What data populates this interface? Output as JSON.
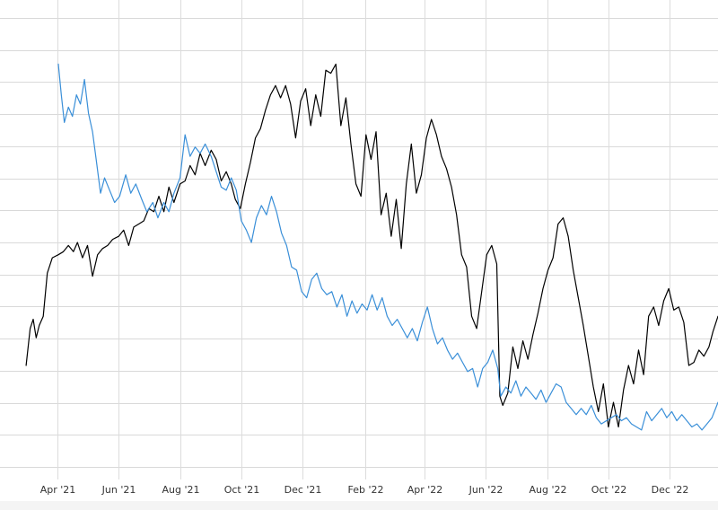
{
  "chart_data": {
    "type": "line",
    "title": "",
    "xlabel": "",
    "ylabel": "",
    "x_ticks": [
      "Apr '21",
      "Jun '21",
      "Aug '21",
      "Oct '21",
      "Dec '21",
      "Feb '22",
      "Apr '22",
      "Jun '22",
      "Aug '22",
      "Oct '22",
      "Dec '22"
    ],
    "tick_dates": [
      "2021-04-01",
      "2021-06-01",
      "2021-08-01",
      "2021-10-01",
      "2021-12-01",
      "2022-02-01",
      "2022-04-01",
      "2022-06-01",
      "2022-08-01",
      "2022-10-01",
      "2022-12-01"
    ],
    "xlim": [
      "2021-02-03",
      "2023-01-18"
    ],
    "ylim": [
      0,
      14.6
    ],
    "y_grid_count": 14,
    "grid": true,
    "y_tick_labels_visible": false,
    "legend": "none",
    "series": [
      {
        "color": "#000000",
        "points": [
          [
            "2021-03-01",
            3.3
          ],
          [
            "2021-03-05",
            4.5
          ],
          [
            "2021-03-08",
            4.8
          ],
          [
            "2021-03-11",
            4.2
          ],
          [
            "2021-03-14",
            4.6
          ],
          [
            "2021-03-18",
            4.9
          ],
          [
            "2021-03-22",
            6.3
          ],
          [
            "2021-03-27",
            6.8
          ],
          [
            "2021-04-02",
            6.9
          ],
          [
            "2021-04-07",
            7.0
          ],
          [
            "2021-04-12",
            7.2
          ],
          [
            "2021-04-17",
            7.0
          ],
          [
            "2021-04-21",
            7.3
          ],
          [
            "2021-04-26",
            6.8
          ],
          [
            "2021-05-01",
            7.2
          ],
          [
            "2021-05-06",
            6.2
          ],
          [
            "2021-05-11",
            6.9
          ],
          [
            "2021-05-16",
            7.1
          ],
          [
            "2021-05-21",
            7.2
          ],
          [
            "2021-05-26",
            7.4
          ],
          [
            "2021-06-01",
            7.5
          ],
          [
            "2021-06-06",
            7.7
          ],
          [
            "2021-06-11",
            7.2
          ],
          [
            "2021-06-16",
            7.8
          ],
          [
            "2021-06-21",
            7.9
          ],
          [
            "2021-06-26",
            8.0
          ],
          [
            "2021-07-01",
            8.4
          ],
          [
            "2021-07-06",
            8.3
          ],
          [
            "2021-07-11",
            8.8
          ],
          [
            "2021-07-16",
            8.3
          ],
          [
            "2021-07-21",
            9.1
          ],
          [
            "2021-07-26",
            8.6
          ],
          [
            "2021-08-01",
            9.2
          ],
          [
            "2021-08-06",
            9.3
          ],
          [
            "2021-08-11",
            9.8
          ],
          [
            "2021-08-16",
            9.5
          ],
          [
            "2021-08-21",
            10.2
          ],
          [
            "2021-08-26",
            9.8
          ],
          [
            "2021-09-01",
            10.3
          ],
          [
            "2021-09-06",
            10.0
          ],
          [
            "2021-09-11",
            9.3
          ],
          [
            "2021-09-16",
            9.6
          ],
          [
            "2021-09-21",
            9.2
          ],
          [
            "2021-09-25",
            8.7
          ],
          [
            "2021-09-30",
            8.4
          ],
          [
            "2021-10-05",
            9.2
          ],
          [
            "2021-10-10",
            9.9
          ],
          [
            "2021-10-15",
            10.7
          ],
          [
            "2021-10-20",
            11.0
          ],
          [
            "2021-10-25",
            11.6
          ],
          [
            "2021-10-30",
            12.1
          ],
          [
            "2021-11-04",
            12.4
          ],
          [
            "2021-11-09",
            12.0
          ],
          [
            "2021-11-14",
            12.4
          ],
          [
            "2021-11-19",
            11.8
          ],
          [
            "2021-11-24",
            10.7
          ],
          [
            "2021-11-29",
            11.9
          ],
          [
            "2021-12-04",
            12.3
          ],
          [
            "2021-12-09",
            11.1
          ],
          [
            "2021-12-14",
            12.1
          ],
          [
            "2021-12-19",
            11.4
          ],
          [
            "2021-12-24",
            12.9
          ],
          [
            "2021-12-29",
            12.8
          ],
          [
            "2022-01-03",
            13.1
          ],
          [
            "2022-01-08",
            11.1
          ],
          [
            "2022-01-13",
            12.0
          ],
          [
            "2022-01-18",
            10.5
          ],
          [
            "2022-01-23",
            9.2
          ],
          [
            "2022-01-28",
            8.8
          ],
          [
            "2022-02-02",
            10.8
          ],
          [
            "2022-02-07",
            10.0
          ],
          [
            "2022-02-12",
            10.9
          ],
          [
            "2022-02-17",
            8.2
          ],
          [
            "2022-02-22",
            8.9
          ],
          [
            "2022-02-27",
            7.5
          ],
          [
            "2022-03-04",
            8.7
          ],
          [
            "2022-03-09",
            7.1
          ],
          [
            "2022-03-14",
            9.2
          ],
          [
            "2022-03-19",
            10.5
          ],
          [
            "2022-03-24",
            8.9
          ],
          [
            "2022-03-29",
            9.5
          ],
          [
            "2022-04-03",
            10.7
          ],
          [
            "2022-04-08",
            11.3
          ],
          [
            "2022-04-13",
            10.8
          ],
          [
            "2022-04-18",
            10.1
          ],
          [
            "2022-04-23",
            9.7
          ],
          [
            "2022-04-28",
            9.1
          ],
          [
            "2022-05-03",
            8.2
          ],
          [
            "2022-05-08",
            6.9
          ],
          [
            "2022-05-13",
            6.5
          ],
          [
            "2022-05-18",
            4.9
          ],
          [
            "2022-05-23",
            4.5
          ],
          [
            "2022-05-28",
            5.7
          ],
          [
            "2022-06-02",
            6.9
          ],
          [
            "2022-06-07",
            7.2
          ],
          [
            "2022-06-12",
            6.6
          ],
          [
            "2022-06-15",
            2.3
          ],
          [
            "2022-06-18",
            2.0
          ],
          [
            "2022-06-23",
            2.4
          ],
          [
            "2022-06-28",
            3.9
          ],
          [
            "2022-07-03",
            3.2
          ],
          [
            "2022-07-08",
            4.1
          ],
          [
            "2022-07-13",
            3.5
          ],
          [
            "2022-07-18",
            4.3
          ],
          [
            "2022-07-23",
            5.0
          ],
          [
            "2022-07-28",
            5.8
          ],
          [
            "2022-08-02",
            6.4
          ],
          [
            "2022-08-07",
            6.8
          ],
          [
            "2022-08-12",
            7.9
          ],
          [
            "2022-08-17",
            8.1
          ],
          [
            "2022-08-22",
            7.5
          ],
          [
            "2022-08-27",
            6.4
          ],
          [
            "2022-09-01",
            5.5
          ],
          [
            "2022-09-06",
            4.6
          ],
          [
            "2022-09-11",
            3.6
          ],
          [
            "2022-09-16",
            2.6
          ],
          [
            "2022-09-21",
            1.8
          ],
          [
            "2022-09-26",
            2.7
          ],
          [
            "2022-10-01",
            1.3
          ],
          [
            "2022-10-06",
            2.1
          ],
          [
            "2022-10-11",
            1.3
          ],
          [
            "2022-10-16",
            2.5
          ],
          [
            "2022-10-21",
            3.3
          ],
          [
            "2022-10-26",
            2.7
          ],
          [
            "2022-10-31",
            3.8
          ],
          [
            "2022-11-05",
            3.0
          ],
          [
            "2022-11-10",
            4.9
          ],
          [
            "2022-11-15",
            5.2
          ],
          [
            "2022-11-20",
            4.6
          ],
          [
            "2022-11-25",
            5.4
          ],
          [
            "2022-11-30",
            5.8
          ],
          [
            "2022-12-05",
            5.1
          ],
          [
            "2022-12-10",
            5.2
          ],
          [
            "2022-12-15",
            4.7
          ],
          [
            "2022-12-20",
            3.3
          ],
          [
            "2022-12-25",
            3.4
          ],
          [
            "2022-12-30",
            3.8
          ],
          [
            "2023-01-04",
            3.6
          ],
          [
            "2023-01-09",
            3.9
          ],
          [
            "2023-01-13",
            4.4
          ],
          [
            "2023-01-18",
            4.9
          ]
        ]
      },
      {
        "color": "#3a8fd8",
        "points": [
          [
            "2021-04-02",
            13.1
          ],
          [
            "2021-04-05",
            12.1
          ],
          [
            "2021-04-08",
            11.2
          ],
          [
            "2021-04-12",
            11.7
          ],
          [
            "2021-04-16",
            11.4
          ],
          [
            "2021-04-20",
            12.1
          ],
          [
            "2021-04-24",
            11.8
          ],
          [
            "2021-04-28",
            12.6
          ],
          [
            "2021-05-02",
            11.5
          ],
          [
            "2021-05-06",
            10.9
          ],
          [
            "2021-05-10",
            9.9
          ],
          [
            "2021-05-14",
            8.9
          ],
          [
            "2021-05-18",
            9.4
          ],
          [
            "2021-05-23",
            9.0
          ],
          [
            "2021-05-28",
            8.6
          ],
          [
            "2021-06-02",
            8.8
          ],
          [
            "2021-06-08",
            9.5
          ],
          [
            "2021-06-13",
            8.9
          ],
          [
            "2021-06-18",
            9.2
          ],
          [
            "2021-06-24",
            8.7
          ],
          [
            "2021-06-29",
            8.3
          ],
          [
            "2021-07-05",
            8.6
          ],
          [
            "2021-07-10",
            8.1
          ],
          [
            "2021-07-16",
            8.6
          ],
          [
            "2021-07-21",
            8.3
          ],
          [
            "2021-07-26",
            8.9
          ],
          [
            "2021-08-01",
            9.4
          ],
          [
            "2021-08-06",
            10.8
          ],
          [
            "2021-08-11",
            10.1
          ],
          [
            "2021-08-16",
            10.4
          ],
          [
            "2021-08-21",
            10.2
          ],
          [
            "2021-08-26",
            10.5
          ],
          [
            "2021-09-01",
            10.1
          ],
          [
            "2021-09-06",
            9.6
          ],
          [
            "2021-09-11",
            9.1
          ],
          [
            "2021-09-16",
            9.0
          ],
          [
            "2021-09-21",
            9.4
          ],
          [
            "2021-09-26",
            9.0
          ],
          [
            "2021-10-01",
            8.0
          ],
          [
            "2021-10-06",
            7.7
          ],
          [
            "2021-10-11",
            7.3
          ],
          [
            "2021-10-16",
            8.1
          ],
          [
            "2021-10-21",
            8.5
          ],
          [
            "2021-10-26",
            8.2
          ],
          [
            "2021-10-31",
            8.8
          ],
          [
            "2021-11-05",
            8.3
          ],
          [
            "2021-11-10",
            7.6
          ],
          [
            "2021-11-15",
            7.2
          ],
          [
            "2021-11-20",
            6.5
          ],
          [
            "2021-11-25",
            6.4
          ],
          [
            "2021-11-30",
            5.7
          ],
          [
            "2021-12-05",
            5.5
          ],
          [
            "2021-12-10",
            6.1
          ],
          [
            "2021-12-15",
            6.3
          ],
          [
            "2021-12-20",
            5.8
          ],
          [
            "2021-12-25",
            5.6
          ],
          [
            "2021-12-30",
            5.7
          ],
          [
            "2022-01-04",
            5.2
          ],
          [
            "2022-01-09",
            5.6
          ],
          [
            "2022-01-14",
            4.9
          ],
          [
            "2022-01-19",
            5.4
          ],
          [
            "2022-01-24",
            5.0
          ],
          [
            "2022-01-29",
            5.3
          ],
          [
            "2022-02-03",
            5.1
          ],
          [
            "2022-02-08",
            5.6
          ],
          [
            "2022-02-13",
            5.1
          ],
          [
            "2022-02-18",
            5.5
          ],
          [
            "2022-02-23",
            4.9
          ],
          [
            "2022-02-28",
            4.6
          ],
          [
            "2022-03-05",
            4.8
          ],
          [
            "2022-03-10",
            4.5
          ],
          [
            "2022-03-15",
            4.2
          ],
          [
            "2022-03-20",
            4.5
          ],
          [
            "2022-03-25",
            4.1
          ],
          [
            "2022-03-30",
            4.7
          ],
          [
            "2022-04-04",
            5.2
          ],
          [
            "2022-04-09",
            4.5
          ],
          [
            "2022-04-14",
            4.0
          ],
          [
            "2022-04-19",
            4.2
          ],
          [
            "2022-04-24",
            3.8
          ],
          [
            "2022-04-29",
            3.5
          ],
          [
            "2022-05-04",
            3.7
          ],
          [
            "2022-05-09",
            3.4
          ],
          [
            "2022-05-14",
            3.1
          ],
          [
            "2022-05-19",
            3.2
          ],
          [
            "2022-05-24",
            2.6
          ],
          [
            "2022-05-29",
            3.2
          ],
          [
            "2022-06-03",
            3.4
          ],
          [
            "2022-06-08",
            3.8
          ],
          [
            "2022-06-13",
            3.2
          ],
          [
            "2022-06-16",
            2.3
          ],
          [
            "2022-06-21",
            2.6
          ],
          [
            "2022-06-26",
            2.4
          ],
          [
            "2022-07-01",
            2.8
          ],
          [
            "2022-07-06",
            2.3
          ],
          [
            "2022-07-11",
            2.6
          ],
          [
            "2022-07-16",
            2.4
          ],
          [
            "2022-07-21",
            2.2
          ],
          [
            "2022-07-26",
            2.5
          ],
          [
            "2022-07-31",
            2.1
          ],
          [
            "2022-08-05",
            2.4
          ],
          [
            "2022-08-10",
            2.7
          ],
          [
            "2022-08-15",
            2.6
          ],
          [
            "2022-08-20",
            2.1
          ],
          [
            "2022-08-25",
            1.9
          ],
          [
            "2022-08-30",
            1.7
          ],
          [
            "2022-09-04",
            1.9
          ],
          [
            "2022-09-09",
            1.7
          ],
          [
            "2022-09-14",
            2.0
          ],
          [
            "2022-09-19",
            1.6
          ],
          [
            "2022-09-24",
            1.4
          ],
          [
            "2022-09-29",
            1.5
          ],
          [
            "2022-10-04",
            1.6
          ],
          [
            "2022-10-09",
            1.7
          ],
          [
            "2022-10-14",
            1.5
          ],
          [
            "2022-10-19",
            1.6
          ],
          [
            "2022-10-24",
            1.4
          ],
          [
            "2022-10-29",
            1.3
          ],
          [
            "2022-11-03",
            1.2
          ],
          [
            "2022-11-08",
            1.8
          ],
          [
            "2022-11-13",
            1.5
          ],
          [
            "2022-11-18",
            1.7
          ],
          [
            "2022-11-23",
            1.9
          ],
          [
            "2022-11-28",
            1.6
          ],
          [
            "2022-12-03",
            1.8
          ],
          [
            "2022-12-08",
            1.5
          ],
          [
            "2022-12-13",
            1.7
          ],
          [
            "2022-12-18",
            1.5
          ],
          [
            "2022-12-23",
            1.3
          ],
          [
            "2022-12-28",
            1.4
          ],
          [
            "2023-01-02",
            1.2
          ],
          [
            "2023-01-07",
            1.4
          ],
          [
            "2023-01-12",
            1.6
          ],
          [
            "2023-01-18",
            2.1
          ]
        ]
      }
    ]
  }
}
